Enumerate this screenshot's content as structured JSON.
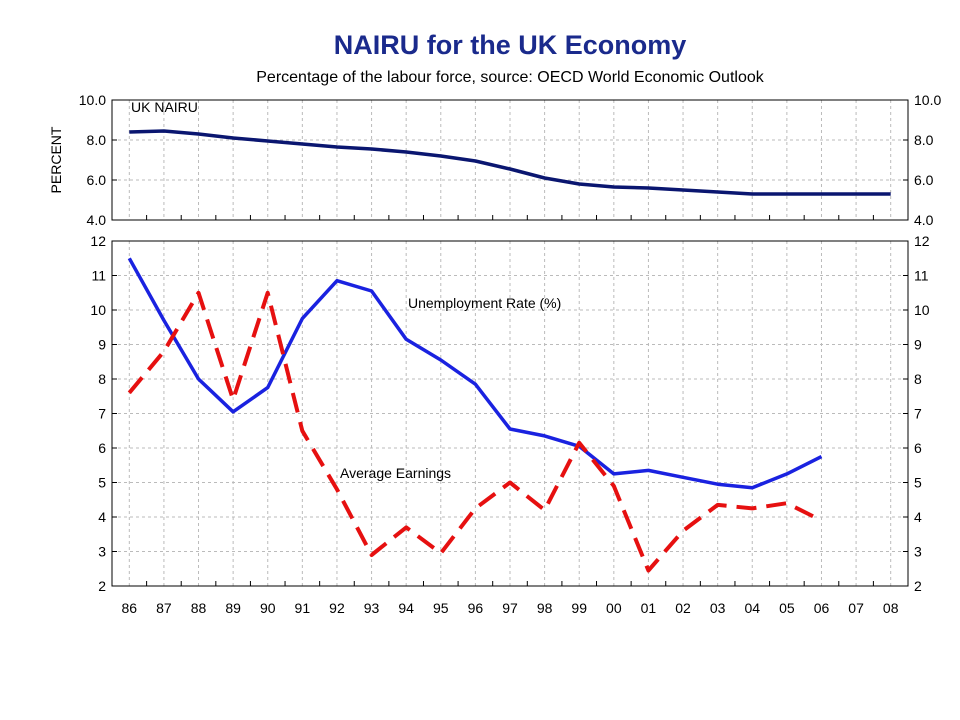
{
  "chart_data": {
    "title": "NAIRU for the UK Economy",
    "subtitle": "Percentage of the labour force, source: OECD World Economic Outlook",
    "x_ticks": [
      "86",
      "87",
      "88",
      "89",
      "90",
      "91",
      "92",
      "93",
      "94",
      "95",
      "96",
      "97",
      "98",
      "99",
      "00",
      "01",
      "02",
      "03",
      "04",
      "05",
      "06",
      "07",
      "08"
    ],
    "panels": [
      {
        "type": "line",
        "ylabel": "PERCENT",
        "ylim": [
          4.0,
          10.0
        ],
        "y_ticks": [
          "4.0",
          "6.0",
          "8.0",
          "10.0"
        ],
        "grid": true,
        "series": [
          {
            "name": "UK NAIRU",
            "color": "#0a1670",
            "dash": "solid",
            "x": [
              1986,
              1987,
              1988,
              1989,
              1990,
              1991,
              1992,
              1993,
              1994,
              1995,
              1996,
              1997,
              1998,
              1999,
              2000,
              2001,
              2002,
              2003,
              2004,
              2005,
              2006,
              2007,
              2008
            ],
            "values": [
              8.4,
              8.45,
              8.3,
              8.1,
              7.95,
              7.8,
              7.65,
              7.55,
              7.4,
              7.2,
              6.95,
              6.55,
              6.1,
              5.8,
              5.65,
              5.6,
              5.5,
              5.4,
              5.3,
              5.3,
              5.3,
              5.3,
              5.3
            ]
          }
        ]
      },
      {
        "type": "line",
        "ylim": [
          2,
          12
        ],
        "y_ticks": [
          "2",
          "3",
          "4",
          "5",
          "6",
          "7",
          "8",
          "9",
          "10",
          "11",
          "12"
        ],
        "grid": true,
        "series": [
          {
            "name": "Unemployment Rate (%)",
            "color": "#1a22e0",
            "dash": "solid",
            "x": [
              1986,
              1987,
              1988,
              1989,
              1990,
              1991,
              1992,
              1993,
              1994,
              1995,
              1996,
              1997,
              1998,
              1999,
              2000,
              2001,
              2002,
              2003,
              2004,
              2005,
              2006
            ],
            "values": [
              11.5,
              9.7,
              8.0,
              7.05,
              7.75,
              9.75,
              10.85,
              10.55,
              9.15,
              8.55,
              7.85,
              6.55,
              6.35,
              6.05,
              5.25,
              5.35,
              5.15,
              4.95,
              4.85,
              5.25,
              5.75
            ]
          },
          {
            "name": "Average Earnings",
            "color": "#e61010",
            "dash": "dashed",
            "x": [
              1986,
              1987,
              1988,
              1989,
              1990,
              1991,
              1992,
              1993,
              1994,
              1995,
              1996,
              1997,
              1998,
              1999,
              2000,
              2001,
              2002,
              2003,
              2004,
              2005,
              2006
            ],
            "values": [
              7.6,
              8.8,
              10.5,
              7.4,
              10.5,
              6.5,
              4.8,
              2.9,
              3.7,
              2.95,
              4.25,
              5.0,
              4.2,
              6.15,
              4.9,
              2.45,
              3.6,
              4.35,
              4.25,
              4.4,
              3.9
            ]
          }
        ]
      }
    ]
  }
}
